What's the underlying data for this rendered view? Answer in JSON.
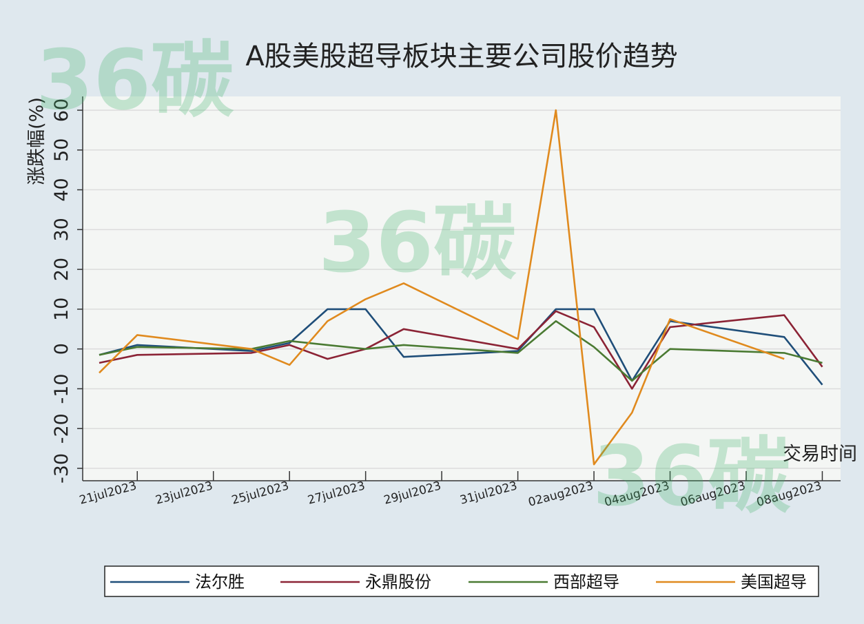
{
  "chart_data": {
    "type": "line",
    "title": "A股美股超导板块主要公司股价趋势",
    "xlabel": "交易时间",
    "ylabel": "涨跌幅(%)",
    "ylim": [
      -30,
      60
    ],
    "yticks": [
      -30,
      -20,
      -10,
      0,
      10,
      20,
      30,
      40,
      50,
      60
    ],
    "xticks": [
      "21jul2023",
      "23jul2023",
      "25jul2023",
      "27jul2023",
      "29jul2023",
      "31jul2023",
      "02aug2023",
      "04aug2023",
      "06aug2023",
      "08aug2023"
    ],
    "x_start_day": 20,
    "x_end_day": 39.1,
    "grid": "horizontal",
    "legend_position": "bottom",
    "series": [
      {
        "name": "法尔胜",
        "color": "#1f4e79",
        "x": [
          "20jul2023",
          "21jul2023",
          "24jul2023",
          "25jul2023",
          "26jul2023",
          "27jul2023",
          "28jul2023",
          "31jul2023",
          "01aug2023",
          "02aug2023",
          "03aug2023",
          "04aug2023",
          "07aug2023",
          "08aug2023"
        ],
        "values": [
          -1.5,
          1,
          -0.5,
          1.5,
          10,
          10,
          -2,
          -0.5,
          10,
          10,
          -8,
          7,
          3,
          -9
        ]
      },
      {
        "name": "永鼎股份",
        "color": "#8b2335",
        "x": [
          "20jul2023",
          "21jul2023",
          "24jul2023",
          "25jul2023",
          "26jul2023",
          "27jul2023",
          "28jul2023",
          "31jul2023",
          "01aug2023",
          "02aug2023",
          "03aug2023",
          "04aug2023",
          "07aug2023",
          "08aug2023"
        ],
        "values": [
          -3.5,
          -1.5,
          -1,
          1,
          -2.5,
          0,
          5,
          0,
          9.5,
          5.5,
          -10,
          5.5,
          8.5,
          -4.5
        ]
      },
      {
        "name": "西部超导",
        "color": "#4a7a32",
        "x": [
          "20jul2023",
          "21jul2023",
          "24jul2023",
          "25jul2023",
          "26jul2023",
          "27jul2023",
          "28jul2023",
          "31jul2023",
          "01aug2023",
          "02aug2023",
          "03aug2023",
          "04aug2023",
          "07aug2023",
          "08aug2023"
        ],
        "values": [
          -1.5,
          0.5,
          0,
          2,
          1,
          0,
          1,
          -1,
          7,
          0.5,
          -8,
          0,
          -1,
          -3.5
        ]
      },
      {
        "name": "美国超导",
        "color": "#e08a1e",
        "x": [
          "20jul2023",
          "21jul2023",
          "24jul2023",
          "25jul2023",
          "26jul2023",
          "27jul2023",
          "28jul2023",
          "31jul2023",
          "01aug2023",
          "02aug2023",
          "03aug2023",
          "04aug2023",
          "07aug2023"
        ],
        "values": [
          -6,
          3.5,
          0,
          -4,
          7,
          12.5,
          16.5,
          2.5,
          60,
          -29,
          -16,
          7.5,
          -2.5
        ]
      }
    ]
  },
  "watermark": {
    "text": "36碳",
    "color": "#3fb46a"
  }
}
